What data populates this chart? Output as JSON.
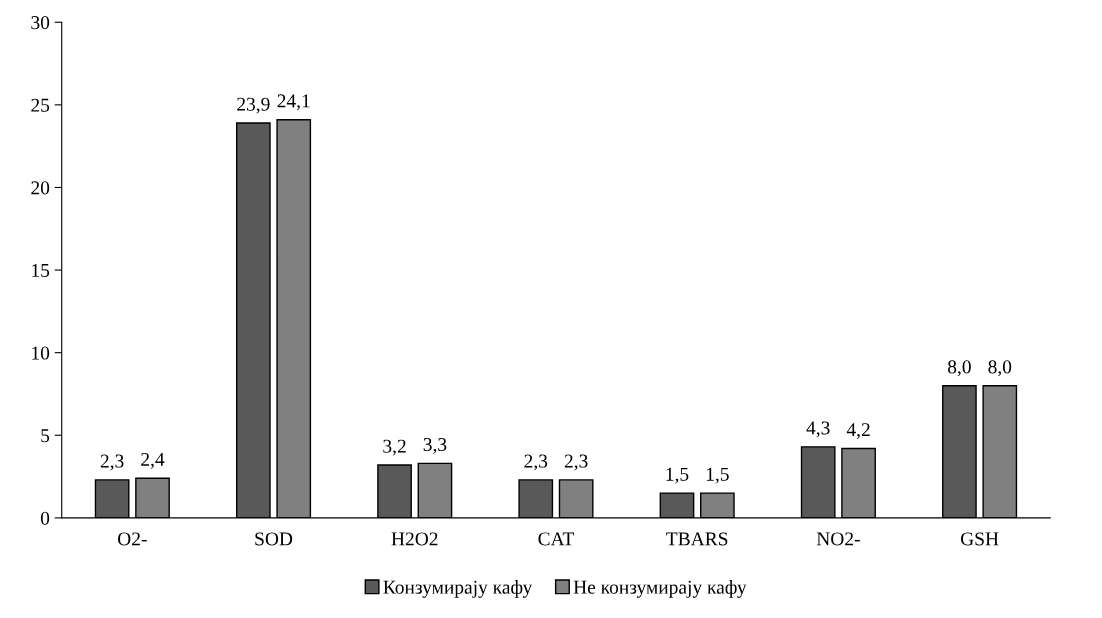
{
  "chart_data": {
    "type": "bar",
    "categories": [
      "O2-",
      "SOD",
      "H2O2",
      "CAT",
      "TBARS",
      "NO2-",
      "GSH"
    ],
    "series": [
      {
        "name": "Конзумирају кафу",
        "color": "#595959",
        "values": [
          2.3,
          23.9,
          3.2,
          2.3,
          1.5,
          4.3,
          8.0
        ],
        "value_labels": [
          "2,3",
          "23,9",
          "3,2",
          "2,3",
          "1,5",
          "4,3",
          "8,0"
        ]
      },
      {
        "name": "Не конзумирају кафу",
        "color": "#808080",
        "values": [
          2.4,
          24.1,
          3.3,
          2.3,
          1.5,
          4.2,
          8.0
        ],
        "value_labels": [
          "2,4",
          "24,1",
          "3,3",
          "2,3",
          "1,5",
          "4,2",
          "8,0"
        ]
      }
    ],
    "ylim": [
      0,
      30
    ],
    "yticks": [
      0,
      5,
      10,
      15,
      20,
      25,
      30
    ],
    "grid": false,
    "legend": "bottom"
  }
}
